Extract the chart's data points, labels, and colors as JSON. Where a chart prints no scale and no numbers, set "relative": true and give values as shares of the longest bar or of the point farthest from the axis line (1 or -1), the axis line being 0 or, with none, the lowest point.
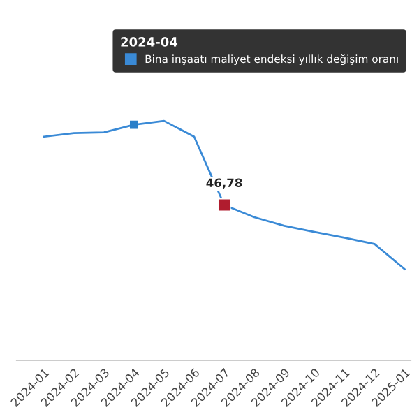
{
  "chart_data": {
    "type": "line",
    "relative": true,
    "legend_title": "2024-04",
    "legend": "top right",
    "grid": false,
    "categories": [
      "2024-01",
      "2024-02",
      "2024-03",
      "2024-04",
      "2024-05",
      "2024-06",
      "2024-07",
      "2024-08",
      "2024-09",
      "2024-10",
      "2024-11",
      "2024-12",
      "2025-01"
    ],
    "annotations": [
      {
        "text": "46,78",
        "x": "2024-07"
      }
    ],
    "series": [
      {
        "name": "Bina inşaatı maliyet endeksi yıllık değişim oranı",
        "color": "#3a8ad6",
        "marker": "none",
        "values": [
          0.934,
          0.949,
          0.952,
          0.984,
          1,
          0.934,
          0.649,
          0.598,
          0.562,
          0.536,
          0.512,
          0.486,
          0.381
        ]
      },
      {
        "type": "scatter",
        "color": "#2a7fc9",
        "marker": "square",
        "values": [
          null,
          null,
          null,
          0.984,
          null,
          null,
          null,
          null,
          null,
          null,
          null,
          null,
          null
        ]
      },
      {
        "type": "scatter",
        "color": "#b01c2e",
        "marker": "square",
        "values": [
          null,
          null,
          null,
          null,
          null,
          null,
          0.649,
          null,
          null,
          null,
          null,
          null,
          null
        ]
      }
    ]
  }
}
